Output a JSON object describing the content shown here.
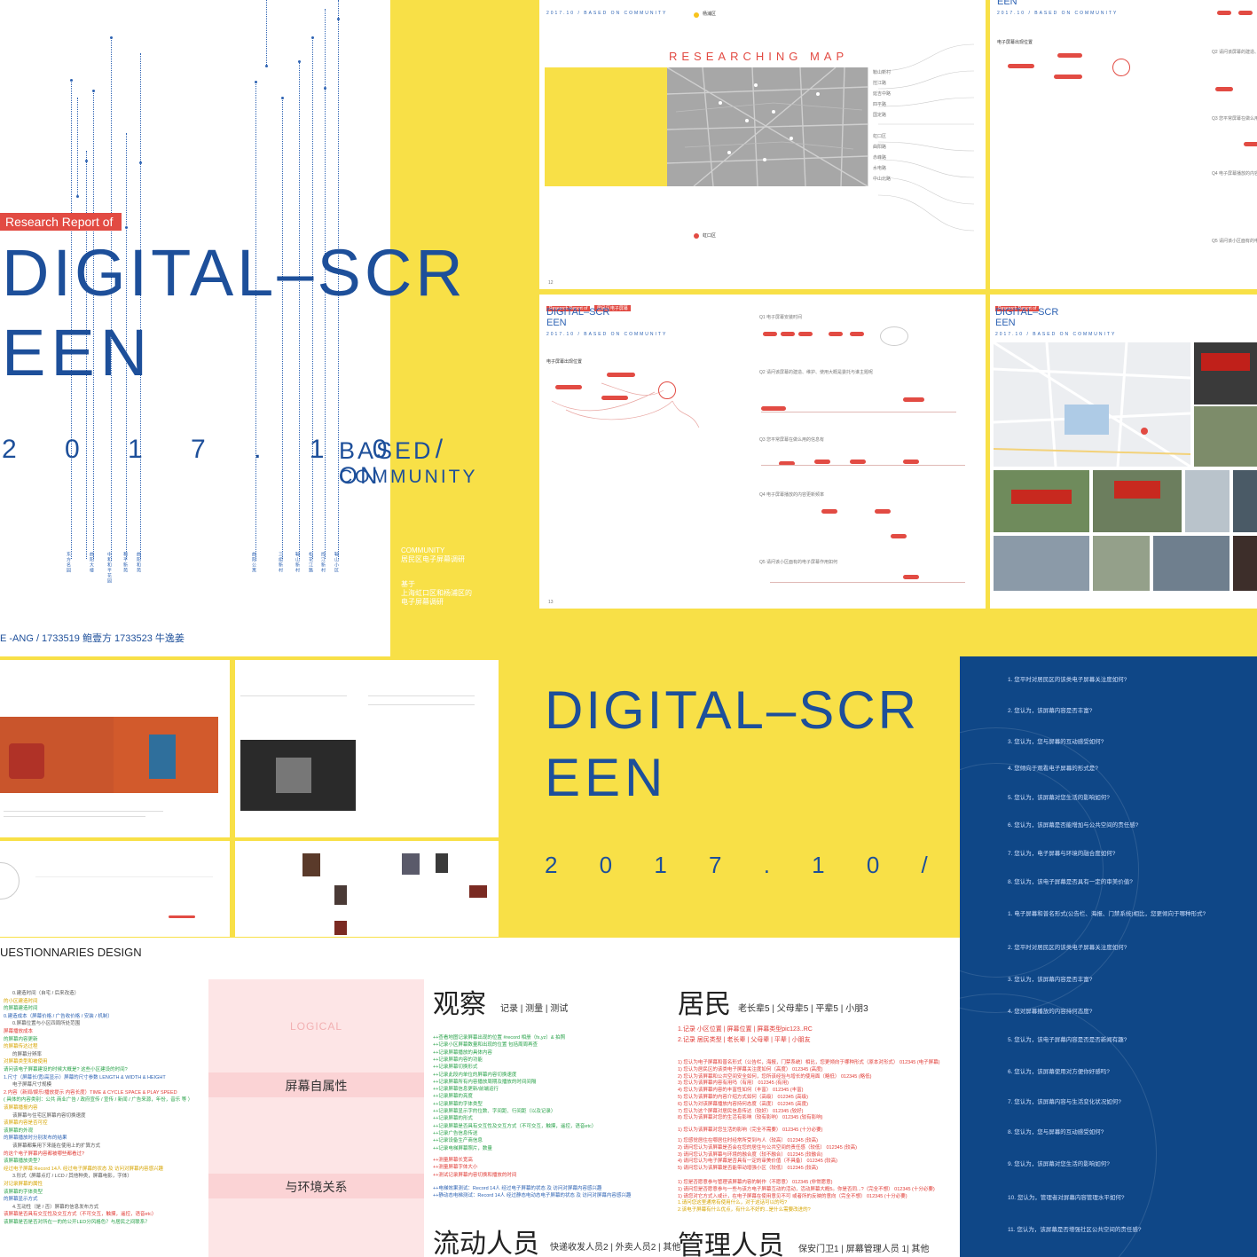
{
  "cover": {
    "tag": "Research Report of",
    "title_line1": "DIGITAL–SCR",
    "title_line2": "EEN",
    "date": "2 0 1 7 . 1 0 /",
    "based_line1": "BASED ON",
    "based_line2": "COMMUNITY",
    "side_text1": "COMMUNITY\n居民区电子屏幕调研",
    "side_text2": "基于\n上海虹口区和杨浦区的\n电子屏幕调研",
    "names": "E -ANG  /  1733519 鲍壹方 1733523 牛逸姜",
    "vertical_labels": [
      "东方名园",
      "曲阳大楼",
      "中和和平花园",
      "和平新苑",
      "曲阳和苑",
      "曲阳公寓",
      "三组新村",
      "鞍山新村",
      "松花江路",
      "控江新村",
      "鞍山小区"
    ]
  },
  "map_spread": {
    "header": "EEN",
    "date": "2017.10 /  BASED ON COMMUNITY",
    "heading": "RESEARCHING   MAP",
    "district1": "杨浦区",
    "district2": "虹口区",
    "district_labels_a": [
      "鞍山新村",
      "控江路",
      "延吉中路",
      "四平路",
      "国定路"
    ],
    "district_labels_b": [
      "虹口区",
      "曲阳路",
      "赤峰路",
      "水电路",
      "中山北路"
    ],
    "page": "12"
  },
  "flow_spread": {
    "tag": "Research Report of",
    "tag2": "居民区电子屏幕",
    "title_line1": "DIGITAL–SCR",
    "title_line2": "EEN",
    "date": "2017.10 /  BASED ON COMMUNITY",
    "section": "电子屏幕出现位置",
    "q1": "Q1 电子屏幕安装时间",
    "q2": "Q2 请问该屏幕的建造、维护、使用大概是委托与谁主题呢",
    "q3": "Q3 您平常屏幕在做么用的信息有",
    "q4": "Q4 电子屏幕播放的内容更新频率",
    "q5": "Q5 请问该小区面有的电子屏幕作用如何",
    "page": "13"
  },
  "photo_spread": {
    "tag": "Research Report of",
    "title_line1": "DIGITAL–SCR",
    "title_line2": "EEN",
    "date": "2017.10 /  BASED ON COMMUNITY"
  },
  "cover2": {
    "title_line1": "DIGITAL–SCR",
    "title_line2": "EEN",
    "date": "2 0 1 7 . 1 0 /"
  },
  "questions": [
    "1. 您平时对居民区的该类电子屏幕关注度如何?",
    "2. 您认为，该屏幕内容是否丰富?",
    "3. 您认为，您与屏幕的互动感受如何?",
    "4. 您倾向于观看电子屏幕的形式是?",
    "5. 您认为，该屏幕对您生活的影响如何?",
    "6. 您认为，该屏幕是否能增加与公共空间的责任感?",
    "7. 您认为，电子屏幕与环境的融合度如何?",
    "8. 您认为，该电子屏幕是否具有一定的审美价值?",
    "1. 电子屏幕和普名形式(公告栏、海报、门禁系统)相比，您更倾向于哪种形式?",
    "2. 您平时对居民区的该类电子屏幕关注度如何?",
    "3. 您认为，该屏幕内容是否丰富?",
    "4. 您对屏幕播放的内容持何态度?",
    "5. 您认为，该电子屏幕内容是否是否新闻有趣?",
    "6. 您认为，该屏幕使用对方便你好感吗?",
    "7. 您认为，该屏幕内容与生活变化状况如何?",
    "8. 您认为，您与屏幕的互动感受如何?",
    "9. 您认为，该屏幕对您生活的影响如何?",
    "10. 您认为，管理者对屏幕内容管理水平如何?",
    "11. 您认为，该屏幕是否增强社区公共空间的责任感?"
  ],
  "bottom": {
    "questionnaires": "UESTIONNARIES DESIGN",
    "logical": "LOGICAL",
    "label1": "屏幕自属性",
    "label2": "与环境关系",
    "observe": "观察",
    "observe_sub": "记录 | 测量 | 测试",
    "resident": "居民",
    "resident_sub": "老长辈5 | 父母辈5 | 平辈5 | 小朋3",
    "mobile": "流动人员",
    "mobile_sub": "快递收发人员2 | 外卖人员2 | 其他",
    "manager": "管理人员",
    "manager_sub": "保安门卫1 | 屏幕管理人员 1| 其他",
    "resident_records": [
      "1.记录 小区位置 | 屏幕位置 | 屏幕类型pic123..RC",
      "2.记录 居民类型 | 老长辈 | 父母辈 | 平辈 | 小朋友"
    ],
    "observe_lines": [
      "++查看地图记录屏幕出现的位置 #record 相册（fx,yz）& 拍照",
      "++记录小区屏幕数量和出现的位置 包括周周再查",
      "++记录屏幕播放的具体内容",
      "++记录屏幕内容的功能",
      "++记录屏幕切换形式",
      "++记录此段内单位的屏幕内容切换速度",
      "++记录屏幕所有内容播放周期及播放的时间间隔",
      "++记录屏幕信息更新/前端运行",
      "++记录屏幕的亮度",
      "++记录屏幕的字体类型",
      "++记录屏幕显示字的位数、字间距、行间距（以及记录）",
      "++记录屏幕的形式",
      "++记录屏幕是否具有交互性及交互方式（不可交互，触摸，遥控，语音etc）",
      "++记录广告信息传送",
      "++记录设备生产商信息",
      "++记录电梯屏幕照片，数量"
    ],
    "observe_lines_red": [
      "++测量屏幕长宽高",
      "++测量屏幕字体大小",
      "++测试记录屏幕内容切换和播放的时间"
    ],
    "observe_lines_blue": [
      "++电梯效果测试：Record 14人 经过电子屏幕的状态 及 访问对屏幕内容感兴趣",
      "++静动态电梯测试：Record 14人 经过静态电动态电子屏幕的状态 及 访问对屏幕内容感兴趣"
    ],
    "left_lines": [
      "0.建造时间（自宅 / 后来改造）",
      "的小区建造时间",
      "的屏幕建造时间",
      "0.建造成本（屏幕价格 / 广告收价格 / 安装 / 机制）",
      "0.屏幕位置与小区四周所处范围",
      "屏幕播放成本",
      "的屏幕内容更新",
      "的屏幕传达过程",
      "的屏幕分辨率",
      "对屏幕类型和被使用",
      "请问该电子屏幕建设的时候大概是? 这些小区建设的时间?",
      "1.尺寸（屏幕长/宽/高显示）屏幕的尺寸参数 LENGTH & WIDTH & HEIGHT",
      "电子屏幕尺寸规模",
      "2.内容（新闻/娱乐/播放提示 内容长度）TIME & CYCLE SPACE & PLAY SPEED",
      "( 具体的内容类别：公共 商业广告 / 政府宣传 / 宣传 / 新闻 / 广告来源，年份，音乐 等 ）",
      "该屏幕播报内容",
      "该屏幕与住宅区屏幕内容切换速度",
      "该屏幕内容是否可控",
      "该屏幕的外观",
      "的屏幕播放时分别发布的结果",
      "该屏幕都集用下来能在使用上的扩算方式",
      "的这个电子屏幕内容都被哪些都看过?",
      "该屏幕播放类型？",
      "经过电子屏幕:Record 14人 经过电子屏幕的状态 及 访问对屏幕内容感兴趣",
      "3.形式（屏幕点灯 / LCD / 其他种类，屏幕电影，字体）",
      "对记录屏幕的属性",
      "该屏幕的字体类型",
      "的屏幕显示方式",
      "4.互动性（是 / 否）屏幕的信息发布方式",
      "该屏幕是否具有交互性及交互方式（不可交互，触摸，遥控，语音etc）",
      "该屏幕是否是否对所在一的的公开LED分风格色？与居民之间联系？"
    ],
    "resident_lines_red": [
      "1) 您认为电子屏幕和普名形式（公告栏，海报，门禁系统）相比，您更倾向于哪种形式（原本对形式） 012345 (电子屏幕)",
      "1) 您认为居民区的该类电子屏幕关注度如何（高度） 012345 (高度)",
      "2) 您认为该屏幕和公共空间安全如何，您所该经验与增长的使用面（略低） 012345 (略低)",
      "3) 您认为该屏幕内容有用吗（有用） 012345 (有用)",
      "4) 您认为该屏幕内容的丰富性如何（丰富） 012345 (丰富)",
      "5) 您认为该屏幕的内容介绍方式如何（高级） 012345 (高级)",
      "6) 您认为对该屏幕播放内容持何态度（高度） 012345 (高度)",
      "7) 您认为这个屏幕对居民信息传达（较好） 012345 (较好)",
      "8) 您认为该屏幕对您的生活有影响（较有影响） 012345 (较有影响)",
      "1) 您认为该屏幕对您生活的影响（完全不需要） 012345 (十分必要)",
      "1) 您感觉居住在哪居住时经常所受到与人（较高） 012345 (较高)",
      "2) 请问您认为该屏幕是否会在您的居住与公共空间的责任感（较低） 012345 (较高)",
      "3) 请问您认为该屏幕与环境的融合度（较不融合） 012345 (较融合)",
      "4) 请问您认为电子屏幕是否具有一定的审美价值（不具备） 012345 (较高)",
      "5) 请问您认为该屏幕是否能带动增强小区（较低） 012345 (较高)",
      "1) 您是否愿意参与管理该屏幕内容的制作（不愿意） 012345 (非常愿意)",
      "1) 请问您是否愿意参与一些与该方电子屏幕互动的活动，活动屏幕大概5。你是否同...?（完全不想） 012345 (十分必要)",
      "1) 请您对它方式入或计，在电子屏幕在使用意见不可 或者所的反映的意向（完全不想） 012345 (十分必要)"
    ],
    "resident_lines_yellow": [
      "1.请问您这里通常有使用什么，对于这话可以的吗?",
      "2.该电子屏幕有什么优点，有什么不好的...是什么需要改进的?"
    ]
  }
}
